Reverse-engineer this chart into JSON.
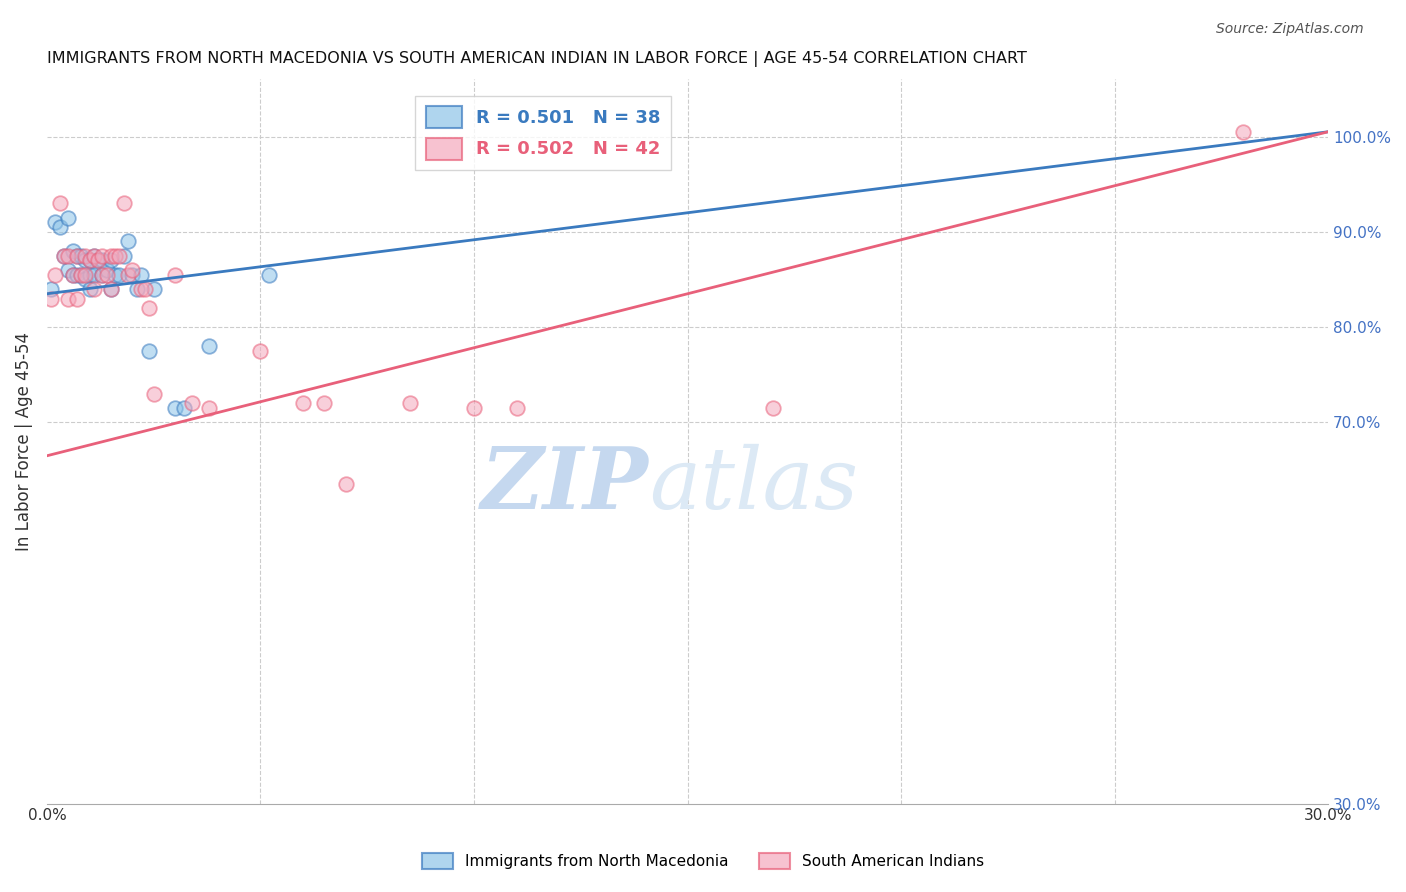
{
  "title": "IMMIGRANTS FROM NORTH MACEDONIA VS SOUTH AMERICAN INDIAN IN LABOR FORCE | AGE 45-54 CORRELATION CHART",
  "source": "Source: ZipAtlas.com",
  "ylabel": "In Labor Force | Age 45-54",
  "r_blue": 0.501,
  "n_blue": 38,
  "r_pink": 0.502,
  "n_pink": 42,
  "legend_label_blue": "Immigrants from North Macedonia",
  "legend_label_pink": "South American Indians",
  "xmin": 0.0,
  "xmax": 0.3,
  "ymin": 0.3,
  "ymax": 1.06,
  "color_blue": "#8dc4e8",
  "color_pink": "#f4a8bc",
  "color_blue_line": "#3a7abf",
  "color_pink_line": "#e8607a",
  "color_right_axis": "#4472c4",
  "blue_line_x0": 0.0,
  "blue_line_y0": 0.835,
  "blue_line_x1": 0.3,
  "blue_line_y1": 1.005,
  "pink_line_x0": 0.0,
  "pink_line_y0": 0.665,
  "pink_line_x1": 0.3,
  "pink_line_y1": 1.005,
  "blue_scatter_x": [
    0.001,
    0.002,
    0.003,
    0.004,
    0.005,
    0.005,
    0.006,
    0.006,
    0.007,
    0.007,
    0.008,
    0.008,
    0.009,
    0.009,
    0.01,
    0.01,
    0.01,
    0.011,
    0.011,
    0.012,
    0.013,
    0.013,
    0.014,
    0.015,
    0.015,
    0.016,
    0.017,
    0.018,
    0.019,
    0.02,
    0.021,
    0.022,
    0.024,
    0.025,
    0.03,
    0.032,
    0.038,
    0.052
  ],
  "blue_scatter_y": [
    0.84,
    0.91,
    0.905,
    0.875,
    0.915,
    0.86,
    0.88,
    0.855,
    0.875,
    0.855,
    0.875,
    0.855,
    0.87,
    0.85,
    0.87,
    0.855,
    0.84,
    0.875,
    0.855,
    0.87,
    0.855,
    0.87,
    0.86,
    0.87,
    0.84,
    0.855,
    0.855,
    0.875,
    0.89,
    0.855,
    0.84,
    0.855,
    0.775,
    0.84,
    0.715,
    0.715,
    0.78,
    0.855
  ],
  "pink_scatter_x": [
    0.001,
    0.002,
    0.003,
    0.004,
    0.005,
    0.005,
    0.006,
    0.007,
    0.007,
    0.008,
    0.009,
    0.009,
    0.01,
    0.011,
    0.011,
    0.012,
    0.013,
    0.013,
    0.014,
    0.015,
    0.015,
    0.016,
    0.017,
    0.018,
    0.019,
    0.02,
    0.022,
    0.023,
    0.024,
    0.025,
    0.03,
    0.034,
    0.038,
    0.05,
    0.06,
    0.065,
    0.07,
    0.085,
    0.1,
    0.11,
    0.17,
    0.28
  ],
  "pink_scatter_y": [
    0.83,
    0.855,
    0.93,
    0.875,
    0.875,
    0.83,
    0.855,
    0.875,
    0.83,
    0.855,
    0.875,
    0.855,
    0.87,
    0.875,
    0.84,
    0.87,
    0.875,
    0.855,
    0.855,
    0.875,
    0.84,
    0.875,
    0.875,
    0.93,
    0.855,
    0.86,
    0.84,
    0.84,
    0.82,
    0.73,
    0.855,
    0.72,
    0.715,
    0.775,
    0.72,
    0.72,
    0.635,
    0.72,
    0.715,
    0.715,
    0.715,
    1.005
  ],
  "watermark_zip": "ZIP",
  "watermark_atlas": "atlas",
  "watermark_color": "#c8ddf0",
  "background_color": "#ffffff",
  "grid_color": "#cccccc",
  "grid_linestyle": "--"
}
